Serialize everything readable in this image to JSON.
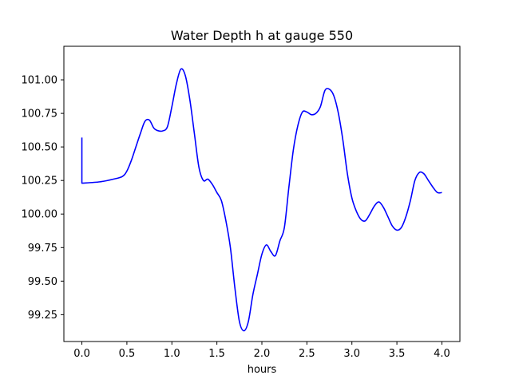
{
  "chart_data": {
    "type": "line",
    "title": "Water Depth h at gauge 550",
    "xlabel": "hours",
    "ylabel": "",
    "xlim": [
      -0.2,
      4.2
    ],
    "ylim": [
      99.05,
      101.25
    ],
    "xticks": [
      0.0,
      0.5,
      1.0,
      1.5,
      2.0,
      2.5,
      3.0,
      3.5,
      4.0
    ],
    "xtick_labels": [
      "0.0",
      "0.5",
      "1.0",
      "1.5",
      "2.0",
      "2.5",
      "3.0",
      "3.5",
      "4.0"
    ],
    "yticks": [
      99.25,
      99.5,
      99.75,
      100.0,
      100.25,
      100.5,
      100.75,
      101.0
    ],
    "ytick_labels": [
      "99.25",
      "99.50",
      "99.75",
      "100.00",
      "100.25",
      "100.50",
      "100.75",
      "101.00"
    ],
    "grid": false,
    "series": [
      {
        "color": "#0000ff",
        "x": [
          0.0,
          0.0,
          0.2,
          0.35,
          0.45,
          0.5,
          0.55,
          0.6,
          0.65,
          0.7,
          0.75,
          0.8,
          0.85,
          0.9,
          0.95,
          1.0,
          1.05,
          1.1,
          1.15,
          1.2,
          1.25,
          1.3,
          1.35,
          1.4,
          1.45,
          1.5,
          1.55,
          1.6,
          1.65,
          1.7,
          1.75,
          1.8,
          1.85,
          1.9,
          1.95,
          2.0,
          2.05,
          2.1,
          2.15,
          2.2,
          2.25,
          2.3,
          2.35,
          2.4,
          2.45,
          2.5,
          2.55,
          2.6,
          2.65,
          2.7,
          2.75,
          2.8,
          2.85,
          2.9,
          2.95,
          3.0,
          3.05,
          3.1,
          3.15,
          3.2,
          3.25,
          3.3,
          3.35,
          3.4,
          3.45,
          3.5,
          3.55,
          3.6,
          3.65,
          3.7,
          3.75,
          3.8,
          3.85,
          3.9,
          3.95,
          4.0
        ],
        "y": [
          100.57,
          100.23,
          100.24,
          100.26,
          100.28,
          100.32,
          100.4,
          100.5,
          100.6,
          100.69,
          100.7,
          100.64,
          100.62,
          100.62,
          100.65,
          100.8,
          100.97,
          101.08,
          101.03,
          100.85,
          100.6,
          100.35,
          100.25,
          100.26,
          100.22,
          100.16,
          100.1,
          99.95,
          99.75,
          99.45,
          99.2,
          99.13,
          99.2,
          99.4,
          99.55,
          99.7,
          99.77,
          99.72,
          99.69,
          99.8,
          99.9,
          100.2,
          100.48,
          100.66,
          100.76,
          100.76,
          100.74,
          100.75,
          100.8,
          100.92,
          100.93,
          100.88,
          100.75,
          100.55,
          100.3,
          100.12,
          100.02,
          99.96,
          99.95,
          100.0,
          100.06,
          100.09,
          100.05,
          99.98,
          99.91,
          99.88,
          99.9,
          99.98,
          100.1,
          100.25,
          100.31,
          100.3,
          100.25,
          100.2,
          100.16,
          100.16
        ]
      }
    ]
  }
}
